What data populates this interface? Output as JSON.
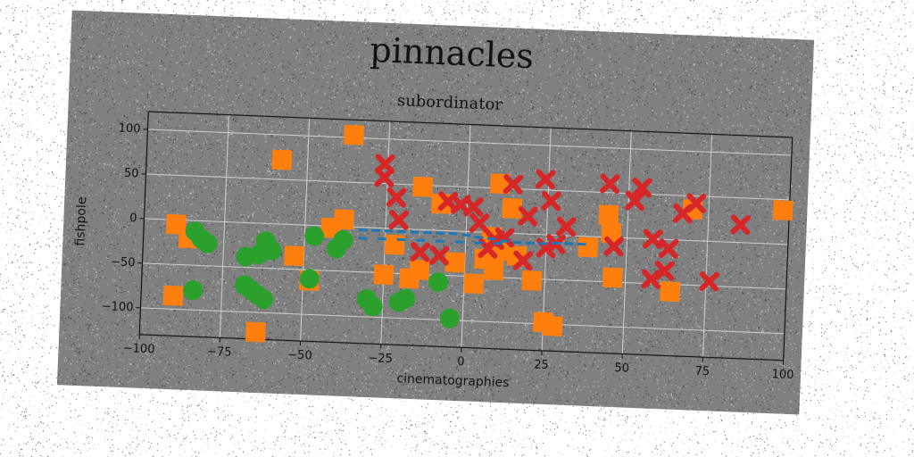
{
  "chart_data": {
    "type": "scatter",
    "title": "pinnacles",
    "subtitle": "subordinator",
    "xlabel": "cinematographies",
    "ylabel": "fishpole",
    "xlim": [
      -100,
      100
    ],
    "ylim": [
      -130,
      120
    ],
    "xticks": [
      -100,
      -75,
      -50,
      -25,
      0,
      25,
      50,
      75,
      100
    ],
    "yticks": [
      -100,
      -50,
      0,
      50,
      100
    ],
    "grid": true,
    "colors": {
      "orange": "#ff7f0e",
      "red": "#d62728",
      "green": "#2ca02c",
      "blue": "#1f77b4",
      "background": "#808080"
    },
    "series": [
      {
        "marker": "square",
        "color": "#ff7f0e",
        "points": [
          [
            -36,
            103
          ],
          [
            -58,
            72
          ],
          [
            -90,
            -5
          ],
          [
            -86,
            -20
          ],
          [
            -53,
            -35
          ],
          [
            -48,
            -62
          ],
          [
            -42,
            -2
          ],
          [
            -38,
            8
          ],
          [
            -90,
            -85
          ],
          [
            -64,
            -122
          ],
          [
            -25,
            -52
          ],
          [
            -17,
            -55
          ],
          [
            -14,
            -45
          ],
          [
            -14,
            48
          ],
          [
            -8,
            30
          ],
          [
            -3,
            -35
          ],
          [
            3,
            -58
          ],
          [
            6,
            -30
          ],
          [
            9,
            -42
          ],
          [
            11,
            -20
          ],
          [
            10,
            55
          ],
          [
            14,
            28
          ],
          [
            16,
            -25
          ],
          [
            21,
            -52
          ],
          [
            25,
            -98
          ],
          [
            28,
            -102
          ],
          [
            38,
            -12
          ],
          [
            44,
            25
          ],
          [
            45,
            5
          ],
          [
            46,
            -45
          ],
          [
            64,
            -58
          ],
          [
            70,
            35
          ],
          [
            98,
            38
          ],
          [
            -22,
            -18
          ],
          [
            8,
            -5
          ]
        ]
      },
      {
        "marker": "x",
        "color": "#d62728",
        "points": [
          [
            -26,
            72
          ],
          [
            -26,
            57
          ],
          [
            -22,
            35
          ],
          [
            -21,
            10
          ],
          [
            -14,
            -25
          ],
          [
            -8,
            -28
          ],
          [
            -6,
            33
          ],
          [
            -2,
            30
          ],
          [
            2,
            28
          ],
          [
            4,
            10
          ],
          [
            7,
            -18
          ],
          [
            9,
            -8
          ],
          [
            12,
            -5
          ],
          [
            14,
            55
          ],
          [
            18,
            -30
          ],
          [
            19,
            20
          ],
          [
            24,
            62
          ],
          [
            26,
            38
          ],
          [
            28,
            -10
          ],
          [
            31,
            10
          ],
          [
            44,
            60
          ],
          [
            46,
            -10
          ],
          [
            52,
            42
          ],
          [
            54,
            57
          ],
          [
            58,
            0
          ],
          [
            58,
            -45
          ],
          [
            62,
            -35
          ],
          [
            63,
            -10
          ],
          [
            67,
            30
          ],
          [
            71,
            42
          ],
          [
            76,
            -45
          ],
          [
            85,
            20
          ],
          [
            25,
            -15
          ]
        ]
      },
      {
        "marker": "circle",
        "color": "#2ca02c",
        "points": [
          [
            -84,
            -12
          ],
          [
            -82,
            -20
          ],
          [
            -80,
            -25
          ],
          [
            -84,
            -78
          ],
          [
            -68,
            -70
          ],
          [
            -66,
            -75
          ],
          [
            -64,
            -80
          ],
          [
            -62,
            -85
          ],
          [
            -68,
            -38
          ],
          [
            -64,
            -35
          ],
          [
            -62,
            -20
          ],
          [
            -60,
            -30
          ],
          [
            -48,
            -60
          ],
          [
            -47,
            -12
          ],
          [
            -40,
            -25
          ],
          [
            -38,
            -15
          ],
          [
            -30,
            -80
          ],
          [
            -28,
            -88
          ],
          [
            -20,
            -82
          ],
          [
            -18,
            -78
          ],
          [
            -8,
            -58
          ],
          [
            -4,
            -98
          ]
        ]
      },
      {
        "marker": "dash",
        "color": "#1f77b4",
        "points": [
          [
            -32,
            -3
          ],
          [
            -28,
            -3
          ],
          [
            -24,
            -3
          ],
          [
            -20,
            -3
          ],
          [
            -16,
            -3
          ],
          [
            -12,
            -3
          ],
          [
            -8,
            -3
          ],
          [
            -4,
            -3
          ],
          [
            0,
            -4
          ],
          [
            4,
            -6
          ],
          [
            8,
            -7
          ],
          [
            12,
            -9
          ],
          [
            16,
            -10
          ],
          [
            20,
            -10
          ],
          [
            24,
            -10
          ],
          [
            28,
            -9
          ],
          [
            32,
            -9
          ],
          [
            36,
            -9
          ],
          [
            -32,
            -12
          ],
          [
            -26,
            -12
          ],
          [
            -20,
            -12
          ],
          [
            -14,
            -12
          ],
          [
            -8,
            -12
          ],
          [
            -2,
            -12
          ],
          [
            4,
            -12
          ],
          [
            10,
            -12
          ]
        ]
      }
    ]
  }
}
